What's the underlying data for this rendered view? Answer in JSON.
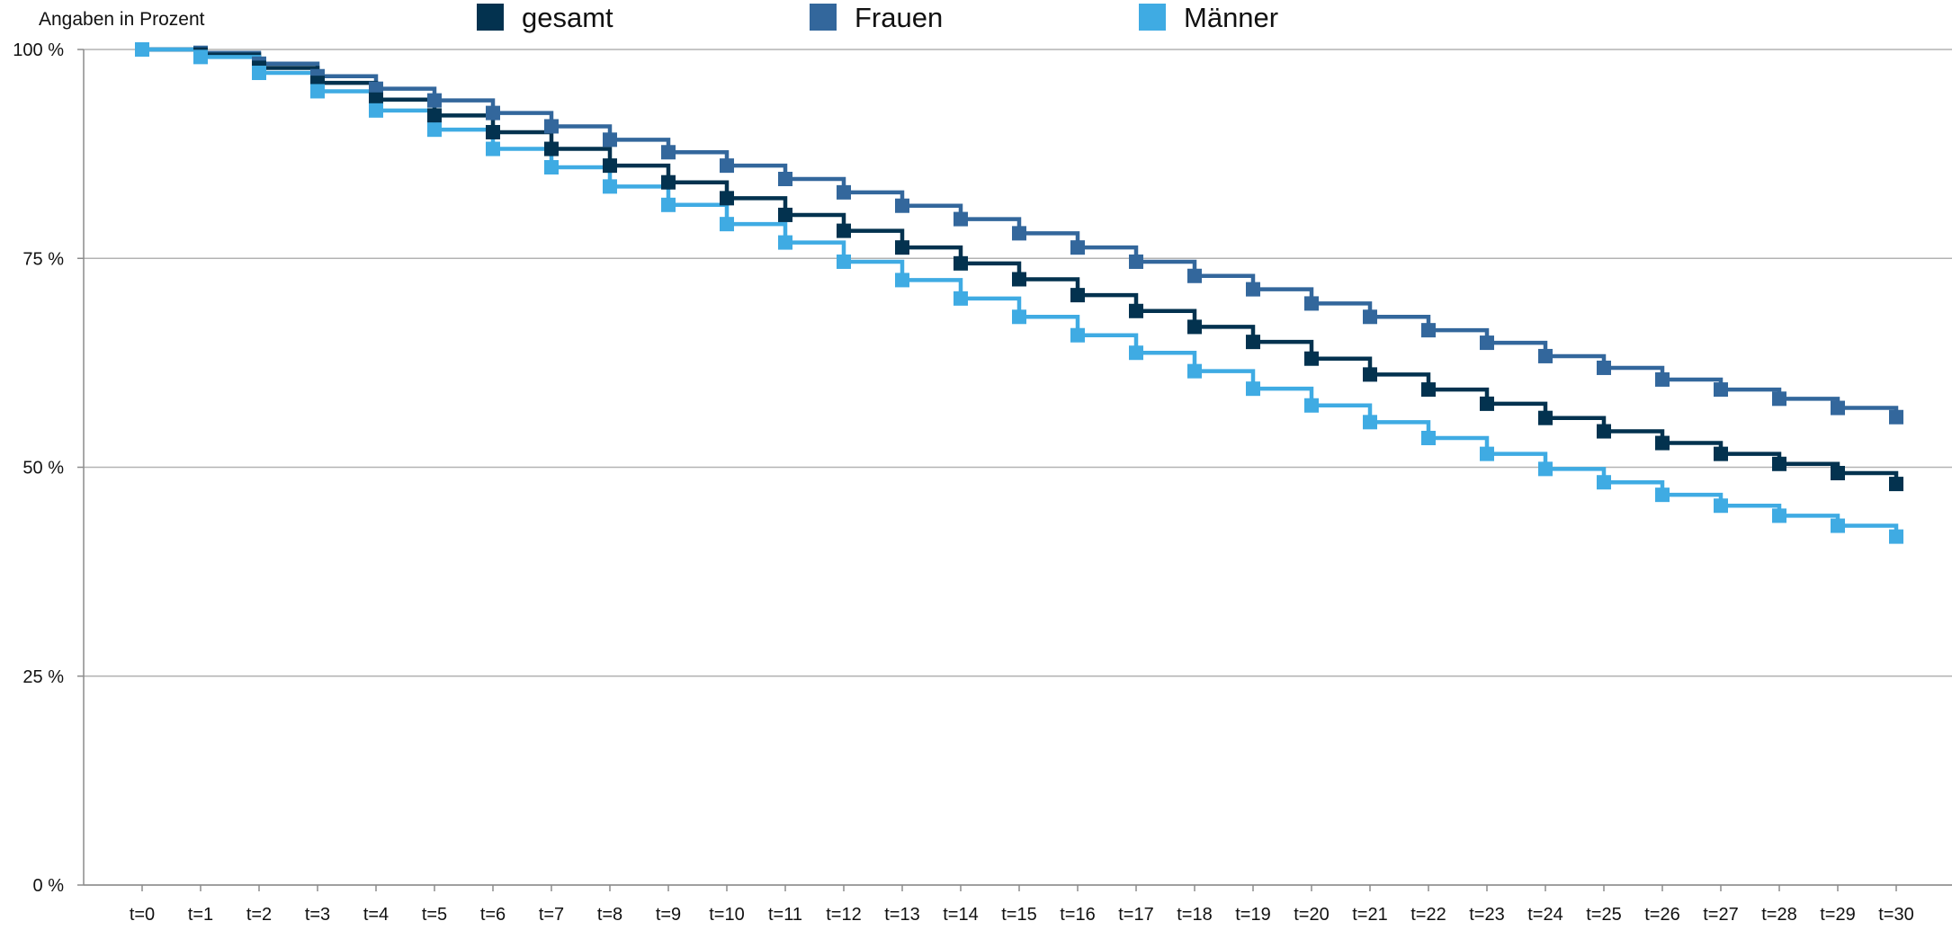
{
  "chart_data": {
    "type": "line",
    "step": true,
    "unit_label": "Angaben in Prozent",
    "x": [
      "t=0",
      "t=1",
      "t=2",
      "t=3",
      "t=4",
      "t=5",
      "t=6",
      "t=7",
      "t=8",
      "t=9",
      "t=10",
      "t=11",
      "t=12",
      "t=13",
      "t=14",
      "t=15",
      "t=16",
      "t=17",
      "t=18",
      "t=19",
      "t=20",
      "t=21",
      "t=22",
      "t=23",
      "t=24",
      "t=25",
      "t=26",
      "t=27",
      "t=28",
      "t=29",
      "t=30"
    ],
    "y_ticks": [
      {
        "value": 0,
        "label": "0 %"
      },
      {
        "value": 25,
        "label": "25 %"
      },
      {
        "value": 50,
        "label": "50 %"
      },
      {
        "value": 75,
        "label": "75 %"
      },
      {
        "value": 100,
        "label": "100 %"
      }
    ],
    "ylim": [
      0,
      100
    ],
    "grid": true,
    "legend_position": "top",
    "series": [
      {
        "name": "gesamt",
        "color": "#03324f",
        "values": [
          100,
          99.4,
          97.8,
          96.0,
          94.0,
          92.1,
          90.1,
          88.1,
          86.1,
          84.1,
          82.2,
          80.2,
          78.3,
          76.3,
          74.4,
          72.5,
          70.6,
          68.7,
          66.8,
          65.0,
          63.0,
          61.1,
          59.3,
          57.6,
          55.9,
          54.3,
          52.9,
          51.6,
          50.4,
          49.3,
          48.0
        ]
      },
      {
        "name": "Frauen",
        "color": "#33679c",
        "values": [
          100,
          99.6,
          98.3,
          96.8,
          95.3,
          93.9,
          92.4,
          90.8,
          89.2,
          87.7,
          86.1,
          84.5,
          82.9,
          81.3,
          79.7,
          78.0,
          76.3,
          74.6,
          72.9,
          71.3,
          69.6,
          68.0,
          66.4,
          64.9,
          63.3,
          61.9,
          60.5,
          59.3,
          58.2,
          57.1,
          56.0
        ]
      },
      {
        "name": "Männer",
        "color": "#3fabe3",
        "values": [
          100,
          99.1,
          97.2,
          95.0,
          92.7,
          90.4,
          88.1,
          85.9,
          83.6,
          81.4,
          79.1,
          76.9,
          74.6,
          72.4,
          70.2,
          68.0,
          65.8,
          63.7,
          61.5,
          59.4,
          57.4,
          55.4,
          53.5,
          51.6,
          49.8,
          48.2,
          46.7,
          45.4,
          44.2,
          43.0,
          41.7
        ]
      }
    ]
  }
}
